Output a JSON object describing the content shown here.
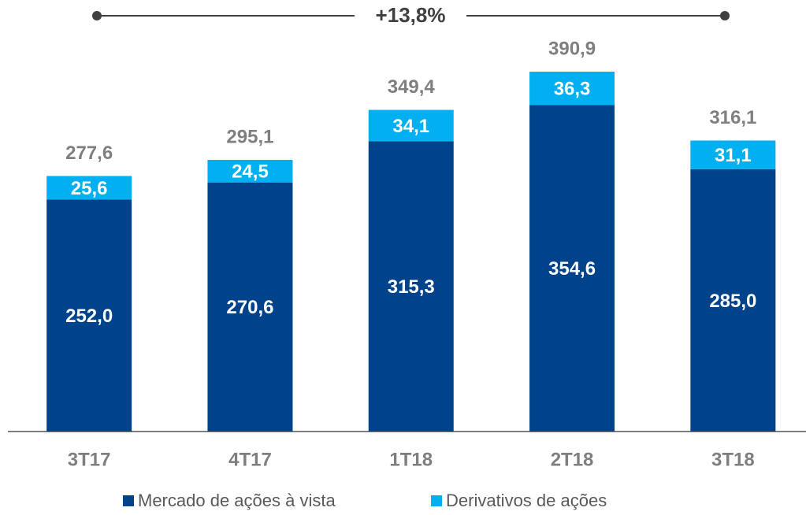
{
  "chart_data": {
    "type": "stacked_bar",
    "annotation": "+13,8%",
    "categories": [
      "3T17",
      "4T17",
      "1T18",
      "2T18",
      "3T18"
    ],
    "series": [
      {
        "name": "Mercado de ações à vista",
        "color": "#00438a",
        "values": [
          252.0,
          270.6,
          315.3,
          354.6,
          285.0
        ],
        "value_labels": [
          "252,0",
          "270,6",
          "315,3",
          "354,6",
          "285,0"
        ]
      },
      {
        "name": "Derivativos de ações",
        "color": "#00b0f0",
        "values": [
          25.6,
          24.5,
          34.1,
          36.3,
          31.1
        ],
        "value_labels": [
          "25,6",
          "24,5",
          "34,1",
          "36,3",
          "31,1"
        ]
      }
    ],
    "totals": [
      277.6,
      295.1,
      349.4,
      390.9,
      316.1
    ],
    "total_labels": [
      "277,6",
      "295,1",
      "349,4",
      "390,9",
      "316,1"
    ],
    "ylim": [
      0,
      400
    ]
  }
}
